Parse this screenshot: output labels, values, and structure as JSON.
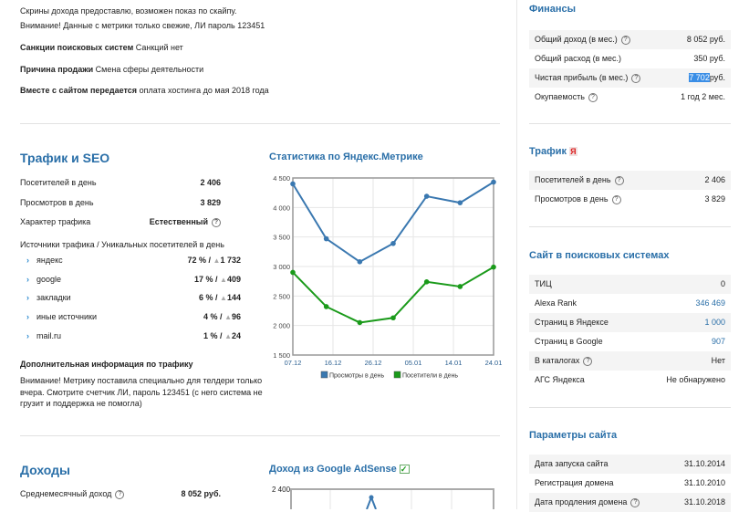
{
  "intro": {
    "line1": "Скрины дохода предоставлю, возможен показ по скайпу.",
    "line2": "Внимание! Данные с метрики только свежие, ЛИ пароль 123451",
    "sanctions_label": "Санкции поисковых систем",
    "sanctions_value": "Санкций нет",
    "reason_label": "Причина продажи",
    "reason_value": "Смена сферы деятельности",
    "transfer_label": "Вместе с сайтом передается",
    "transfer_value": "оплата хостинга до мая 2018 года"
  },
  "traffic": {
    "title": "Трафик и SEO",
    "rows": [
      {
        "label": "Посетителей в день",
        "value": "2 406"
      },
      {
        "label": "Просмотров в день",
        "value": "3 829"
      },
      {
        "label": "Характер трафика",
        "value": "Естественный"
      }
    ],
    "sources_title": "Источники трафика / Уникальных посетителей в день",
    "sources": [
      {
        "name": "яндекс",
        "pct": "72 % /",
        "users": "1 732"
      },
      {
        "name": "google",
        "pct": "17 % /",
        "users": "409"
      },
      {
        "name": "закладки",
        "pct": "6 % /",
        "users": "144"
      },
      {
        "name": "иные источники",
        "pct": "4 % /",
        "users": "96"
      },
      {
        "name": "mail.ru",
        "pct": "1 % /",
        "users": "24"
      }
    ],
    "extra_title": "Дополнительная информация по трафику",
    "extra_text": "Внимание! Метрику поставила специально для телдери только вчера. Смотрите счетчик ЛИ, пароль 123451 (с него система не грузит и поддержка не помогла)"
  },
  "chart_data": [
    {
      "type": "line",
      "title": "Статистика по Яндекс.Метрике",
      "x_tick_labels": [
        "07.12",
        "16.12",
        "26.12",
        "05.01",
        "14.01",
        "24.01"
      ],
      "y_ticks": [
        "1 500",
        "2 000",
        "2 500",
        "3 000",
        "3 500",
        "4 000",
        "4 500"
      ],
      "ylim": [
        1500,
        4500
      ],
      "grid": true,
      "legend": "bottom",
      "series": [
        {
          "name": "Просмотры в день",
          "color": "#3a78b0",
          "values": [
            4400,
            3470,
            3080,
            3390,
            4190,
            4080,
            4430
          ]
        },
        {
          "name": "Посетители в день",
          "color": "#1a9a1a",
          "values": [
            2900,
            2320,
            2050,
            2130,
            2740,
            2660,
            2990
          ]
        }
      ]
    },
    {
      "type": "line",
      "title": "Доход из Google AdSense",
      "y_ticks": [
        "2 400"
      ]
    }
  ],
  "income": {
    "title": "Доходы",
    "label": "Среднемесячный доход",
    "value": "8 052 руб."
  },
  "finance": {
    "title": "Финансы",
    "rows": [
      {
        "label": "Общий доход (в мес.)",
        "value": "8 052 руб.",
        "help": true
      },
      {
        "label": "Общий расход (в мес.)",
        "value": "350 руб."
      },
      {
        "label": "Чистая прибыль (в мес.)",
        "value_sel": "7 702",
        "value": "руб.",
        "help": true
      },
      {
        "label": "Окупаемость",
        "value": "1 год 2 мес.",
        "help": true
      }
    ]
  },
  "traffic_side": {
    "title": "Трафик",
    "badge": "Я",
    "rows": [
      {
        "label": "Посетителей в день",
        "value": "2 406"
      },
      {
        "label": "Просмотров в день",
        "value": "3 829"
      }
    ]
  },
  "search": {
    "title": "Сайт в поисковых системах",
    "rows": [
      {
        "label": "ТИЦ",
        "value": "0"
      },
      {
        "label": "Alexa Rank",
        "value": "346 469"
      },
      {
        "label": "Страниц в Яндексе",
        "value": "1 000"
      },
      {
        "label": "Страниц в Google",
        "value": "907"
      },
      {
        "label": "В каталогах",
        "value": "Нет"
      },
      {
        "label": "АГС Яндекса",
        "value": "Не обнаружено"
      }
    ]
  },
  "params": {
    "title": "Параметры сайта",
    "rows": [
      {
        "label": "Дата запуска сайта",
        "value": "31.10.2014"
      },
      {
        "label": "Регистрация домена",
        "value": "31.10.2010"
      },
      {
        "label": "Дата продления домена",
        "value": "31.10.2018"
      }
    ]
  },
  "help_glyph": "?"
}
